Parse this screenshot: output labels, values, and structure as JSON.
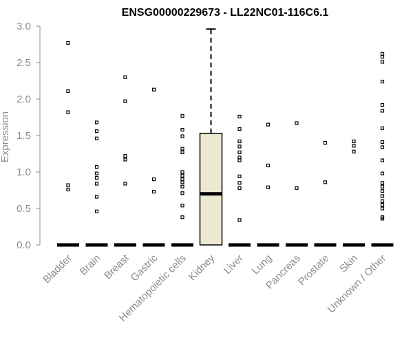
{
  "chart_data": {
    "type": "box",
    "title": "ENSG00000229673 - LL22NC01-116C6.1",
    "ylabel": "Expression",
    "xlabel": "",
    "ylim": [
      0,
      3.0
    ],
    "yticks": [
      "0.0",
      "0.5",
      "1.0",
      "1.5",
      "2.0",
      "2.5",
      "3.0"
    ],
    "grid": false,
    "categories": [
      "Bladder",
      "Brain",
      "Breast",
      "Gastric",
      "Hematopoietic cells",
      "Kidney",
      "Liver",
      "Lung",
      "Pancreas",
      "Prostate",
      "Skin",
      "Unknown / Other"
    ],
    "colors": {
      "box_fill": "#ede8d0",
      "outline": "#000000",
      "label": "#8c8c8c"
    },
    "boxes": [
      {
        "category": "Bladder",
        "q1": 0,
        "median": 0,
        "q3": 0,
        "whisker_low": 0,
        "whisker_high": 0,
        "outliers": [
          2.77,
          2.11,
          1.82,
          0.82,
          0.76
        ]
      },
      {
        "category": "Brain",
        "q1": 0,
        "median": 0,
        "q3": 0,
        "whisker_low": 0,
        "whisker_high": 0,
        "outliers": [
          1.68,
          1.56,
          1.46,
          1.07,
          0.98,
          0.92,
          0.84,
          0.66,
          0.46
        ]
      },
      {
        "category": "Breast",
        "q1": 0,
        "median": 0,
        "q3": 0,
        "whisker_low": 0,
        "whisker_high": 0,
        "outliers": [
          2.3,
          1.97,
          1.22,
          1.17,
          0.84
        ]
      },
      {
        "category": "Gastric",
        "q1": 0,
        "median": 0,
        "q3": 0,
        "whisker_low": 0,
        "whisker_high": 0,
        "outliers": [
          2.13,
          0.9,
          0.73
        ]
      },
      {
        "category": "Hematopoietic cells",
        "q1": 0,
        "median": 0,
        "q3": 0,
        "whisker_low": 0,
        "whisker_high": 0,
        "outliers": [
          1.77,
          1.58,
          1.49,
          1.32,
          1.27,
          1.0,
          0.95,
          0.9,
          0.86,
          0.8,
          0.71,
          0.54,
          0.38
        ]
      },
      {
        "category": "Kidney",
        "q1": 0,
        "median": 0.7,
        "q3": 1.53,
        "whisker_low": 0,
        "whisker_high": 2.96,
        "outliers": []
      },
      {
        "category": "Liver",
        "q1": 0,
        "median": 0,
        "q3": 0,
        "whisker_low": 0,
        "whisker_high": 0,
        "outliers": [
          1.76,
          1.59,
          1.42,
          1.35,
          1.27,
          1.2,
          1.16,
          0.94,
          0.85,
          0.78,
          0.34
        ]
      },
      {
        "category": "Lung",
        "q1": 0,
        "median": 0,
        "q3": 0,
        "whisker_low": 0,
        "whisker_high": 0,
        "outliers": [
          1.65,
          1.09,
          0.79
        ]
      },
      {
        "category": "Pancreas",
        "q1": 0,
        "median": 0,
        "q3": 0,
        "whisker_low": 0,
        "whisker_high": 0,
        "outliers": [
          1.67,
          0.78
        ]
      },
      {
        "category": "Prostate",
        "q1": 0,
        "median": 0,
        "q3": 0,
        "whisker_low": 0,
        "whisker_high": 0,
        "outliers": [
          1.4,
          0.86
        ]
      },
      {
        "category": "Skin",
        "q1": 0,
        "median": 0,
        "q3": 0,
        "whisker_low": 0,
        "whisker_high": 0,
        "outliers": [
          1.42,
          1.36,
          1.28
        ]
      },
      {
        "category": "Unknown / Other",
        "q1": 0,
        "median": 0,
        "q3": 0,
        "whisker_low": 0,
        "whisker_high": 0,
        "outliers": [
          2.62,
          2.58,
          2.51,
          2.24,
          1.92,
          1.84,
          1.6,
          1.41,
          1.34,
          1.16,
          0.98,
          0.85,
          0.8,
          0.74,
          0.67,
          0.6,
          0.55,
          0.5,
          0.38,
          0.36
        ]
      }
    ]
  }
}
